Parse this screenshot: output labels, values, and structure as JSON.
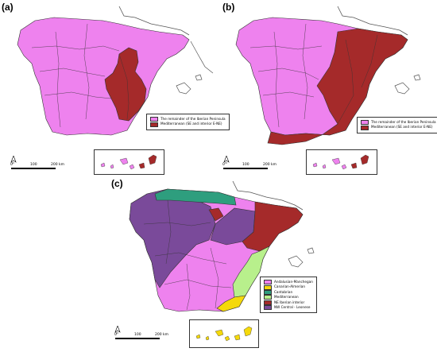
{
  "panels": [
    {
      "label": "(a)",
      "legend": [
        {
          "text": "The remainder of the Iberian Peninsula",
          "color": "#ee82ee"
        },
        {
          "text": "Mediterranean (SE and interior E-NE)",
          "color": "#a52a2a"
        }
      ]
    },
    {
      "label": "(b)",
      "legend": [
        {
          "text": "The remainder of the Iberian Peninsula",
          "color": "#ee82ee"
        },
        {
          "text": "Mediterranean (SE and interior E-NE)",
          "color": "#a52a2a"
        }
      ]
    },
    {
      "label": "(c)",
      "legend": [
        {
          "text": "Andalusian-Manchegan",
          "color": "#ee82ee"
        },
        {
          "text": "Canarian-Almerian",
          "color": "#f5d90a"
        },
        {
          "text": "Cantabrian",
          "color": "#2e9e7e"
        },
        {
          "text": "Mediterranean",
          "color": "#b8f08c"
        },
        {
          "text": "NE Iberian interior",
          "color": "#a52a2a"
        },
        {
          "text": "NW Central - Leonese",
          "color": "#7a4a9a"
        }
      ]
    }
  ],
  "scale": {
    "zero": "0",
    "mid": "100",
    "end": "200 km"
  },
  "colors": {
    "violet": "#ee82ee",
    "brown": "#a52a2a",
    "yellow": "#f5d90a",
    "teal": "#2e9e7e",
    "lightgreen": "#b8f08c",
    "purple": "#7a4a9a",
    "border": "#333333",
    "coast": "#555555"
  }
}
